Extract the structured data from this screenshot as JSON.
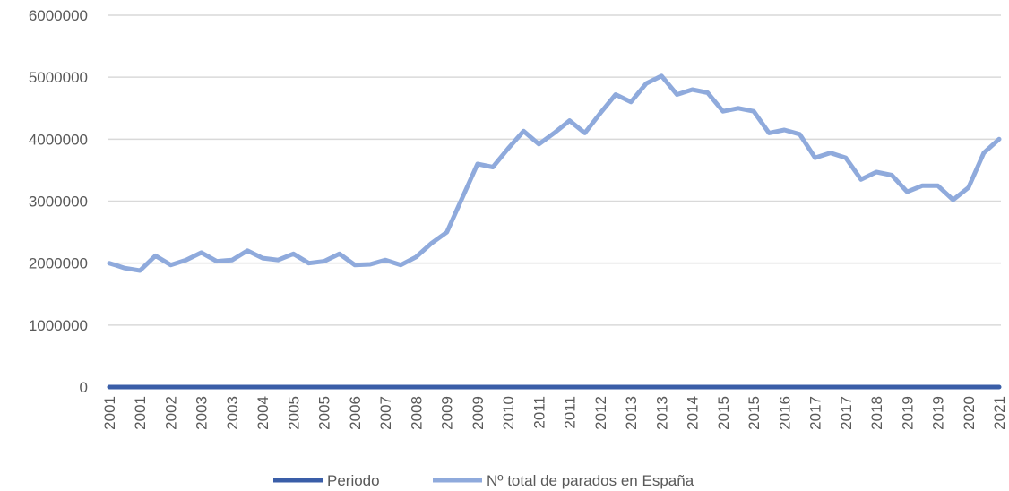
{
  "chart_data": {
    "type": "line",
    "categories": [
      "2001",
      null,
      "2001",
      null,
      "2002",
      null,
      "2003",
      null,
      "2003",
      null,
      "2004",
      null,
      "2005",
      null,
      "2005",
      null,
      "2006",
      null,
      "2007",
      null,
      "2008",
      null,
      "2009",
      null,
      "2009",
      null,
      "2010",
      null,
      "2011",
      null,
      "2011",
      null,
      "2012",
      null,
      "2013",
      null,
      "2013",
      null,
      "2014",
      null,
      "2015",
      null,
      "2015",
      null,
      "2016",
      null,
      "2017",
      null,
      "2017",
      null,
      "2018",
      null,
      "2019",
      null,
      "2019",
      null,
      "2020",
      null,
      "2021"
    ],
    "series": [
      {
        "name": "Periodo",
        "color": "#3a5ea8",
        "values": [
          0,
          0,
          0,
          0,
          0,
          0,
          0,
          0,
          0,
          0,
          0,
          0,
          0,
          0,
          0,
          0,
          0,
          0,
          0,
          0,
          0,
          0,
          0,
          0,
          0,
          0,
          0,
          0,
          0,
          0,
          0,
          0,
          0,
          0,
          0,
          0,
          0,
          0,
          0,
          0,
          0,
          0,
          0,
          0,
          0,
          0,
          0,
          0,
          0,
          0,
          0,
          0,
          0,
          0,
          0,
          0,
          0,
          0,
          0
        ]
      },
      {
        "name": "Nº total de parados en España",
        "color": "#8faadc",
        "values": [
          2000000,
          1920000,
          1880000,
          2120000,
          1970000,
          2050000,
          2170000,
          2030000,
          2050000,
          2200000,
          2080000,
          2050000,
          2150000,
          2000000,
          2030000,
          2150000,
          1970000,
          1980000,
          2050000,
          1970000,
          2100000,
          2320000,
          2500000,
          3050000,
          3600000,
          3550000,
          3850000,
          4130000,
          3920000,
          4100000,
          4300000,
          4100000,
          4420000,
          4720000,
          4600000,
          4900000,
          5020000,
          4720000,
          4800000,
          4750000,
          4450000,
          4500000,
          4450000,
          4100000,
          4150000,
          4080000,
          3700000,
          3780000,
          3700000,
          3350000,
          3470000,
          3420000,
          3150000,
          3250000,
          3250000,
          3020000,
          3220000,
          3780000,
          4000000
        ]
      }
    ],
    "ylim": [
      0,
      6000000
    ],
    "yticks": [
      0,
      1000000,
      2000000,
      3000000,
      4000000,
      5000000,
      6000000
    ],
    "grid": true
  }
}
